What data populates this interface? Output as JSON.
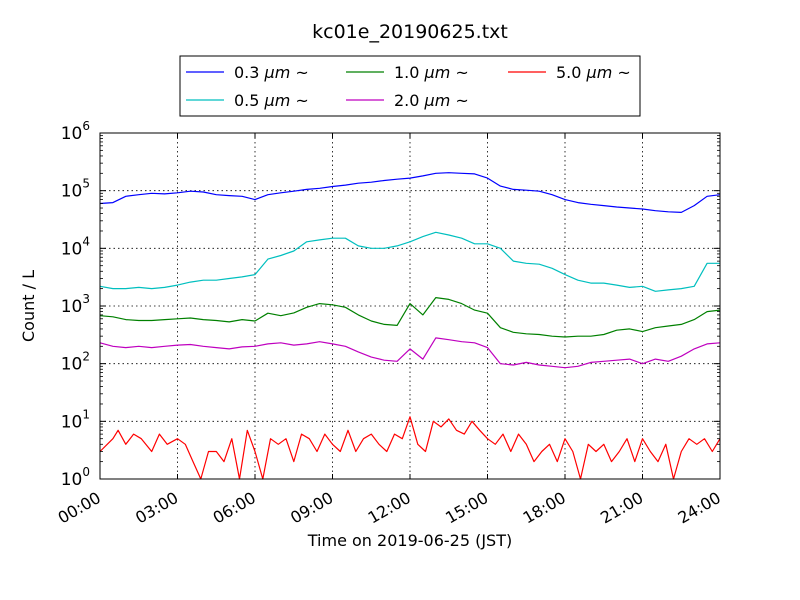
{
  "chart_data": {
    "type": "line",
    "title": "kc01e_20190625.txt",
    "xlabel": "Time on 2019-06-25 (JST)",
    "ylabel": "Count / L",
    "y_scale": "log",
    "ylim": [
      1,
      1000000
    ],
    "xlim": [
      0,
      24
    ],
    "x_unit": "hours",
    "x_ticks": [
      {
        "value": 0,
        "label": "00:00"
      },
      {
        "value": 3,
        "label": "03:00"
      },
      {
        "value": 6,
        "label": "06:00"
      },
      {
        "value": 9,
        "label": "09:00"
      },
      {
        "value": 12,
        "label": "12:00"
      },
      {
        "value": 15,
        "label": "15:00"
      },
      {
        "value": 18,
        "label": "18:00"
      },
      {
        "value": 21,
        "label": "21:00"
      },
      {
        "value": 24,
        "label": "24:00"
      }
    ],
    "y_ticks": [
      {
        "value": 1,
        "base": "10",
        "exp": "0"
      },
      {
        "value": 10,
        "base": "10",
        "exp": "1"
      },
      {
        "value": 100,
        "base": "10",
        "exp": "2"
      },
      {
        "value": 1000,
        "base": "10",
        "exp": "3"
      },
      {
        "value": 10000,
        "base": "10",
        "exp": "4"
      },
      {
        "value": 100000,
        "base": "10",
        "exp": "5"
      },
      {
        "value": 1000000,
        "base": "10",
        "exp": "6"
      }
    ],
    "grid": true,
    "legend_position": "top-center",
    "series": [
      {
        "name": "0.3 μm ~",
        "label_size": "0.3",
        "label_unit": "μm",
        "label_suffix": "~",
        "color": "#0000ff",
        "points": [
          [
            0,
            60000
          ],
          [
            0.5,
            62000
          ],
          [
            1,
            80000
          ],
          [
            1.5,
            85000
          ],
          [
            2,
            90000
          ],
          [
            2.5,
            88000
          ],
          [
            3,
            92000
          ],
          [
            3.5,
            98000
          ],
          [
            4,
            95000
          ],
          [
            4.5,
            85000
          ],
          [
            5,
            82000
          ],
          [
            5.5,
            80000
          ],
          [
            6,
            70000
          ],
          [
            6.5,
            85000
          ],
          [
            7,
            92000
          ],
          [
            7.5,
            98000
          ],
          [
            8,
            105000
          ],
          [
            8.5,
            110000
          ],
          [
            9,
            118000
          ],
          [
            9.5,
            125000
          ],
          [
            10,
            135000
          ],
          [
            10.5,
            140000
          ],
          [
            11,
            150000
          ],
          [
            11.5,
            158000
          ],
          [
            12,
            165000
          ],
          [
            12.5,
            180000
          ],
          [
            13,
            200000
          ],
          [
            13.5,
            205000
          ],
          [
            14,
            200000
          ],
          [
            14.5,
            195000
          ],
          [
            15,
            165000
          ],
          [
            15.5,
            120000
          ],
          [
            16,
            105000
          ],
          [
            16.5,
            102000
          ],
          [
            17,
            98000
          ],
          [
            17.5,
            85000
          ],
          [
            18,
            70000
          ],
          [
            18.5,
            62000
          ],
          [
            19,
            58000
          ],
          [
            19.5,
            55000
          ],
          [
            20,
            52000
          ],
          [
            20.5,
            50000
          ],
          [
            21,
            48000
          ],
          [
            21.5,
            45000
          ],
          [
            22,
            43000
          ],
          [
            22.5,
            42000
          ],
          [
            23,
            55000
          ],
          [
            23.5,
            80000
          ],
          [
            24,
            85000
          ]
        ]
      },
      {
        "name": "0.5 μm ~",
        "label_size": "0.5",
        "label_unit": "μm",
        "label_suffix": "~",
        "color": "#00bfbf",
        "points": [
          [
            0,
            2200
          ],
          [
            0.5,
            2000
          ],
          [
            1,
            2000
          ],
          [
            1.5,
            2100
          ],
          [
            2,
            2000
          ],
          [
            2.5,
            2100
          ],
          [
            3,
            2300
          ],
          [
            3.5,
            2600
          ],
          [
            4,
            2800
          ],
          [
            4.5,
            2800
          ],
          [
            5,
            3000
          ],
          [
            5.5,
            3200
          ],
          [
            6,
            3500
          ],
          [
            6.5,
            6500
          ],
          [
            7,
            7500
          ],
          [
            7.5,
            9000
          ],
          [
            8,
            13000
          ],
          [
            8.5,
            14000
          ],
          [
            9,
            15000
          ],
          [
            9.5,
            15000
          ],
          [
            10,
            11000
          ],
          [
            10.5,
            10000
          ],
          [
            11,
            10000
          ],
          [
            11.5,
            11000
          ],
          [
            12,
            13000
          ],
          [
            12.5,
            16000
          ],
          [
            13,
            19000
          ],
          [
            13.5,
            17000
          ],
          [
            14,
            15000
          ],
          [
            14.5,
            12000
          ],
          [
            15,
            12000
          ],
          [
            15.5,
            10000
          ],
          [
            16,
            6000
          ],
          [
            16.5,
            5500
          ],
          [
            17,
            5300
          ],
          [
            17.5,
            4500
          ],
          [
            18,
            3500
          ],
          [
            18.5,
            2800
          ],
          [
            19,
            2500
          ],
          [
            19.5,
            2500
          ],
          [
            20,
            2300
          ],
          [
            20.5,
            2100
          ],
          [
            21,
            2200
          ],
          [
            21.5,
            1800
          ],
          [
            22,
            1900
          ],
          [
            22.5,
            2000
          ],
          [
            23,
            2200
          ],
          [
            23.5,
            5500
          ],
          [
            24,
            5500
          ]
        ]
      },
      {
        "name": "1.0 μm ~",
        "label_size": "1.0",
        "label_unit": "μm",
        "label_suffix": "~",
        "color": "#008000",
        "points": [
          [
            0,
            680
          ],
          [
            0.5,
            650
          ],
          [
            1,
            580
          ],
          [
            1.5,
            560
          ],
          [
            2,
            560
          ],
          [
            2.5,
            580
          ],
          [
            3,
            600
          ],
          [
            3.5,
            620
          ],
          [
            4,
            580
          ],
          [
            4.5,
            560
          ],
          [
            5,
            530
          ],
          [
            5.5,
            580
          ],
          [
            6,
            550
          ],
          [
            6.5,
            750
          ],
          [
            7,
            680
          ],
          [
            7.5,
            760
          ],
          [
            8,
            950
          ],
          [
            8.5,
            1100
          ],
          [
            9,
            1050
          ],
          [
            9.5,
            950
          ],
          [
            10,
            700
          ],
          [
            10.5,
            550
          ],
          [
            11,
            480
          ],
          [
            11.5,
            460
          ],
          [
            12,
            1100
          ],
          [
            12.5,
            700
          ],
          [
            13,
            1400
          ],
          [
            13.5,
            1300
          ],
          [
            14,
            1100
          ],
          [
            14.5,
            850
          ],
          [
            15,
            750
          ],
          [
            15.5,
            420
          ],
          [
            16,
            350
          ],
          [
            16.5,
            330
          ],
          [
            17,
            320
          ],
          [
            17.5,
            300
          ],
          [
            18,
            290
          ],
          [
            18.5,
            300
          ],
          [
            19,
            300
          ],
          [
            19.5,
            320
          ],
          [
            20,
            380
          ],
          [
            20.5,
            400
          ],
          [
            21,
            360
          ],
          [
            21.5,
            420
          ],
          [
            22,
            450
          ],
          [
            22.5,
            480
          ],
          [
            23,
            580
          ],
          [
            23.5,
            800
          ],
          [
            24,
            850
          ]
        ]
      },
      {
        "name": "2.0 μm ~",
        "label_size": "2.0",
        "label_unit": "μm",
        "label_suffix": "~",
        "color": "#bf00bf",
        "points": [
          [
            0,
            230
          ],
          [
            0.5,
            200
          ],
          [
            1,
            190
          ],
          [
            1.5,
            200
          ],
          [
            2,
            190
          ],
          [
            2.5,
            200
          ],
          [
            3,
            210
          ],
          [
            3.5,
            215
          ],
          [
            4,
            200
          ],
          [
            4.5,
            190
          ],
          [
            5,
            180
          ],
          [
            5.5,
            195
          ],
          [
            6,
            200
          ],
          [
            6.5,
            220
          ],
          [
            7,
            230
          ],
          [
            7.5,
            210
          ],
          [
            8,
            220
          ],
          [
            8.5,
            240
          ],
          [
            9,
            220
          ],
          [
            9.5,
            200
          ],
          [
            10,
            160
          ],
          [
            10.5,
            130
          ],
          [
            11,
            115
          ],
          [
            11.5,
            110
          ],
          [
            12,
            180
          ],
          [
            12.5,
            120
          ],
          [
            13,
            280
          ],
          [
            13.5,
            260
          ],
          [
            14,
            240
          ],
          [
            14.5,
            230
          ],
          [
            15,
            190
          ],
          [
            15.5,
            100
          ],
          [
            16,
            95
          ],
          [
            16.5,
            105
          ],
          [
            17,
            95
          ],
          [
            17.5,
            90
          ],
          [
            18,
            85
          ],
          [
            18.5,
            90
          ],
          [
            19,
            105
          ],
          [
            19.5,
            110
          ],
          [
            20,
            115
          ],
          [
            20.5,
            120
          ],
          [
            21,
            100
          ],
          [
            21.5,
            120
          ],
          [
            22,
            110
          ],
          [
            22.5,
            135
          ],
          [
            23,
            180
          ],
          [
            23.5,
            220
          ],
          [
            24,
            230
          ]
        ]
      },
      {
        "name": "5.0 μm ~",
        "label_size": "5.0",
        "label_unit": "μm",
        "label_suffix": "~",
        "color": "#ff0000",
        "points": [
          [
            0,
            3
          ],
          [
            0.5,
            5
          ],
          [
            0.7,
            7
          ],
          [
            1,
            4
          ],
          [
            1.3,
            6
          ],
          [
            1.6,
            5
          ],
          [
            2,
            3
          ],
          [
            2.3,
            6
          ],
          [
            2.6,
            4
          ],
          [
            3,
            5
          ],
          [
            3.3,
            4
          ],
          [
            3.6,
            2
          ],
          [
            3.9,
            1
          ],
          [
            4.2,
            3
          ],
          [
            4.5,
            3
          ],
          [
            4.8,
            2
          ],
          [
            5.1,
            5
          ],
          [
            5.4,
            1
          ],
          [
            5.7,
            7
          ],
          [
            6,
            3
          ],
          [
            6.3,
            1
          ],
          [
            6.6,
            5
          ],
          [
            6.9,
            4
          ],
          [
            7.2,
            5
          ],
          [
            7.5,
            2
          ],
          [
            7.8,
            6
          ],
          [
            8.1,
            5
          ],
          [
            8.4,
            3
          ],
          [
            8.7,
            6
          ],
          [
            9,
            4
          ],
          [
            9.3,
            3
          ],
          [
            9.6,
            7
          ],
          [
            9.9,
            3
          ],
          [
            10.2,
            5
          ],
          [
            10.5,
            6
          ],
          [
            10.8,
            4
          ],
          [
            11.1,
            3
          ],
          [
            11.4,
            6
          ],
          [
            11.7,
            5
          ],
          [
            12,
            12
          ],
          [
            12.3,
            4
          ],
          [
            12.6,
            3
          ],
          [
            12.9,
            10
          ],
          [
            13.2,
            8
          ],
          [
            13.5,
            11
          ],
          [
            13.8,
            7
          ],
          [
            14.1,
            6
          ],
          [
            14.4,
            10
          ],
          [
            14.7,
            7
          ],
          [
            15,
            5
          ],
          [
            15.3,
            4
          ],
          [
            15.6,
            6
          ],
          [
            15.9,
            3
          ],
          [
            16.2,
            6
          ],
          [
            16.5,
            4
          ],
          [
            16.8,
            2
          ],
          [
            17.1,
            3
          ],
          [
            17.4,
            4
          ],
          [
            17.7,
            2
          ],
          [
            18,
            5
          ],
          [
            18.3,
            3
          ],
          [
            18.6,
            1
          ],
          [
            18.9,
            4
          ],
          [
            19.2,
            3
          ],
          [
            19.5,
            4
          ],
          [
            19.8,
            2
          ],
          [
            20.1,
            3
          ],
          [
            20.4,
            5
          ],
          [
            20.7,
            2
          ],
          [
            21,
            5
          ],
          [
            21.3,
            3
          ],
          [
            21.6,
            2
          ],
          [
            21.9,
            4
          ],
          [
            22.2,
            1
          ],
          [
            22.5,
            3
          ],
          [
            22.8,
            5
          ],
          [
            23.1,
            4
          ],
          [
            23.4,
            5
          ],
          [
            23.7,
            3
          ],
          [
            24,
            5
          ]
        ]
      }
    ]
  }
}
